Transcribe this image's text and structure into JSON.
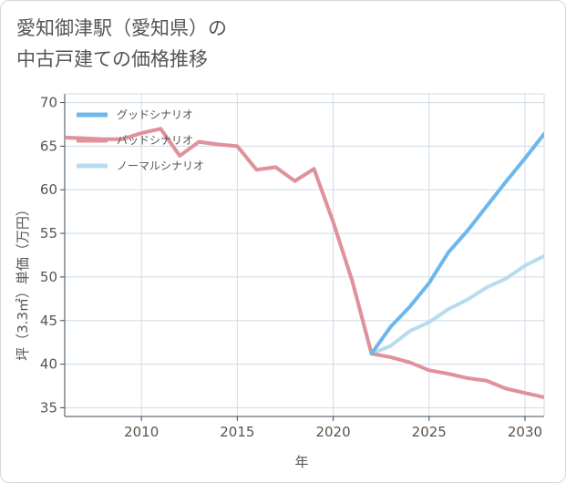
{
  "page": {
    "title_line1": "愛知御津駅（愛知県）の",
    "title_line2": "中古戸建ての価格推移"
  },
  "colors": {
    "good": "#6cb8ec",
    "bad": "#e0919a",
    "normal": "#b8dcee",
    "grid": "#d0dbe6",
    "axis": "#3a4a5a"
  },
  "chart_data": {
    "type": "line",
    "xlabel": "年",
    "ylabel": "坪（3.3㎡）単価（万円）",
    "xlim": [
      2006,
      2031
    ],
    "ylim": [
      34,
      71
    ],
    "xticks": [
      2010,
      2015,
      2020,
      2025,
      2030
    ],
    "yticks": [
      35,
      40,
      45,
      50,
      55,
      60,
      65,
      70
    ],
    "grid": true,
    "legend_position": "top-left",
    "series": [
      {
        "name": "グッドシナリオ",
        "color_key": "good",
        "x": [
          2022,
          2023,
          2024,
          2025,
          2026,
          2027,
          2028,
          2029,
          2030,
          2031
        ],
        "y": [
          41.2,
          44.3,
          46.6,
          49.3,
          52.8,
          55.3,
          58.1,
          60.9,
          63.6,
          66.4
        ]
      },
      {
        "name": "バッドシナリオ",
        "color_key": "bad",
        "x": [
          2006,
          2007,
          2008,
          2009,
          2010,
          2011,
          2012,
          2013,
          2014,
          2015,
          2016,
          2017,
          2018,
          2019,
          2020,
          2021,
          2022,
          2023,
          2024,
          2025,
          2026,
          2027,
          2028,
          2029,
          2030,
          2031
        ],
        "y": [
          66.0,
          65.9,
          65.8,
          65.8,
          66.5,
          67.0,
          63.9,
          65.5,
          65.2,
          65.0,
          62.3,
          62.6,
          61.0,
          62.4,
          56.3,
          49.5,
          41.2,
          40.8,
          40.2,
          39.3,
          38.9,
          38.4,
          38.1,
          37.2,
          36.7,
          36.2
        ]
      },
      {
        "name": "ノーマルシナリオ",
        "color_key": "normal",
        "x": [
          2006,
          2007,
          2008,
          2009,
          2010,
          2011,
          2012,
          2013,
          2014,
          2015,
          2016,
          2017,
          2018,
          2019,
          2020,
          2021,
          2022,
          2023,
          2024,
          2025,
          2026,
          2027,
          2028,
          2029,
          2030,
          2031
        ],
        "y": [
          66.0,
          65.9,
          65.8,
          65.8,
          66.5,
          67.0,
          63.9,
          65.5,
          65.2,
          65.0,
          62.3,
          62.6,
          61.0,
          62.4,
          56.3,
          49.5,
          41.2,
          42.1,
          43.8,
          44.8,
          46.3,
          47.4,
          48.8,
          49.8,
          51.3,
          52.4
        ]
      }
    ]
  }
}
